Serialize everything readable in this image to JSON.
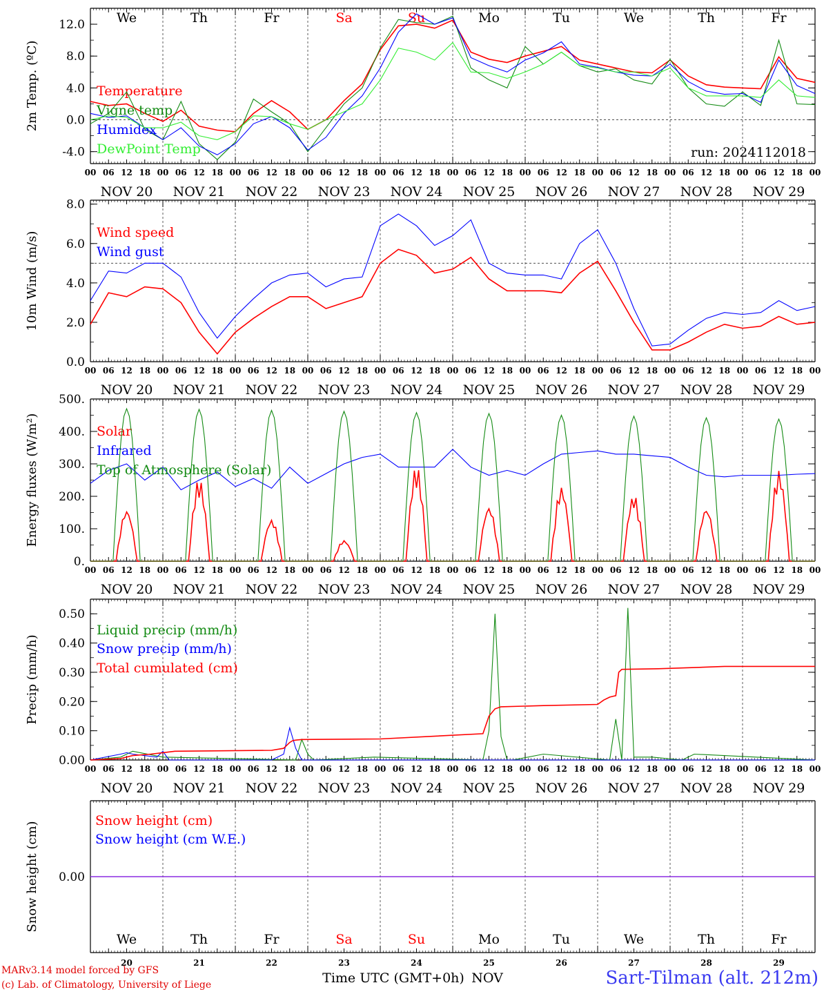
{
  "colors": {
    "red": "#ff0000",
    "darkgreen": "#128a12",
    "blue": "#0000ff",
    "lightgreen": "#33ee33",
    "purple": "#8a2be2",
    "station": "#3a3af0"
  },
  "run_label": "run: 2024112018",
  "days": [
    {
      "abbr": "We",
      "date": "NOV 20",
      "num": "20",
      "weekend": false
    },
    {
      "abbr": "Th",
      "date": "NOV 21",
      "num": "21",
      "weekend": false
    },
    {
      "abbr": "Fr",
      "date": "NOV 22",
      "num": "22",
      "weekend": false
    },
    {
      "abbr": "Sa",
      "date": "NOV 23",
      "num": "23",
      "weekend": true
    },
    {
      "abbr": "Su",
      "date": "NOV 24",
      "num": "24",
      "weekend": true
    },
    {
      "abbr": "Mo",
      "date": "NOV 25",
      "num": "25",
      "weekend": false
    },
    {
      "abbr": "Tu",
      "date": "NOV 26",
      "num": "26",
      "weekend": false
    },
    {
      "abbr": "We",
      "date": "NOV 27",
      "num": "27",
      "weekend": false
    },
    {
      "abbr": "Th",
      "date": "NOV 28",
      "num": "28",
      "weekend": false
    },
    {
      "abbr": "Fr",
      "date": "NOV 29",
      "num": "29",
      "weekend": false
    }
  ],
  "hour_ticks": [
    "00",
    "06",
    "12",
    "18"
  ],
  "hour_end_tick": "00",
  "x_axis_label": "Time UTC (GMT+0h)",
  "x_axis_month": "NOV",
  "footer": {
    "model": "MARv3.14 model forced by GFS",
    "credit": "(c) Lab. of Climatology, University of Liege",
    "station": "Sart-Tilman (alt. 212m)"
  },
  "chart_data": [
    {
      "id": "temp",
      "type": "line",
      "ylabel": "2m Temp. (ºC)",
      "ylim": [
        -5.5,
        14
      ],
      "yticks": [
        "12.0",
        "8.0",
        "4.0",
        "0.0",
        "-4.0"
      ],
      "ytick_values": [
        12,
        8,
        4,
        0,
        -4
      ],
      "x_unit": "hours since NOV 20 00 UTC",
      "ref_line": 0,
      "series": [
        {
          "name": "Temperature",
          "color": "red",
          "x": [
            0,
            6,
            12,
            18,
            24,
            30,
            36,
            42,
            48,
            54,
            60,
            66,
            72,
            78,
            84,
            90,
            96,
            102,
            108,
            114,
            120,
            126,
            132,
            138,
            144,
            150,
            156,
            162,
            168,
            174,
            180,
            186,
            192,
            198,
            204,
            210,
            216,
            222,
            228,
            234,
            240
          ],
          "y": [
            2.3,
            1.8,
            2.0,
            0.8,
            -0.2,
            1.2,
            -0.8,
            -1.3,
            -1.5,
            0.8,
            2.4,
            1.0,
            -1.2,
            0.0,
            2.4,
            4.5,
            8.8,
            11.8,
            12.0,
            11.5,
            12.5,
            8.5,
            7.6,
            7.2,
            8.0,
            8.6,
            9.2,
            7.5,
            7.0,
            6.5,
            6.0,
            5.9,
            7.5,
            5.5,
            4.4,
            4.1,
            4.0,
            3.9,
            7.9,
            5.2,
            4.7
          ]
        },
        {
          "name": "Vigne temp",
          "color": "darkgreen",
          "x": [
            0,
            6,
            12,
            18,
            24,
            30,
            36,
            42,
            48,
            54,
            60,
            66,
            72,
            78,
            84,
            90,
            96,
            102,
            108,
            114,
            120,
            126,
            132,
            138,
            144,
            150,
            156,
            162,
            168,
            174,
            180,
            186,
            192,
            198,
            204,
            210,
            216,
            222,
            228,
            234,
            240
          ],
          "y": [
            -0.5,
            0.8,
            3.5,
            -1.2,
            -2.5,
            2.3,
            -3.0,
            -5.0,
            -2.8,
            2.6,
            1.0,
            -0.5,
            -4.0,
            -1.0,
            2.0,
            4.0,
            9.0,
            12.6,
            12.2,
            12.0,
            13.0,
            6.5,
            5.0,
            4.0,
            9.2,
            7.0,
            8.5,
            6.8,
            6.0,
            6.4,
            5.0,
            4.5,
            7.6,
            4.0,
            2.0,
            1.7,
            3.5,
            1.8,
            10.0,
            2.0,
            1.9
          ]
        },
        {
          "name": "Humidex",
          "color": "blue",
          "x": [
            0,
            6,
            12,
            18,
            24,
            30,
            36,
            42,
            48,
            54,
            60,
            66,
            72,
            78,
            84,
            90,
            96,
            102,
            108,
            114,
            120,
            126,
            132,
            138,
            144,
            150,
            156,
            162,
            168,
            174,
            180,
            186,
            192,
            198,
            204,
            210,
            216,
            222,
            228,
            234,
            240
          ],
          "y": [
            0.8,
            0.3,
            0.5,
            -1.0,
            -2.5,
            -1.0,
            -3.3,
            -4.4,
            -3.0,
            -0.5,
            0.4,
            -1.0,
            -3.8,
            -2.2,
            0.8,
            3.0,
            6.5,
            11.0,
            13.3,
            12.0,
            12.8,
            7.8,
            6.8,
            6.0,
            7.5,
            8.4,
            9.8,
            7.0,
            6.6,
            6.0,
            5.6,
            5.5,
            7.0,
            4.8,
            3.6,
            3.2,
            3.3,
            2.2,
            7.5,
            4.3,
            3.3
          ]
        },
        {
          "name": "DewPoint Temp",
          "color": "lightgreen",
          "x": [
            0,
            6,
            12,
            18,
            24,
            30,
            36,
            42,
            48,
            54,
            60,
            66,
            72,
            78,
            84,
            90,
            96,
            102,
            108,
            114,
            120,
            126,
            132,
            138,
            144,
            150,
            156,
            162,
            168,
            174,
            180,
            186,
            192,
            198,
            204,
            210,
            216,
            222,
            228,
            234,
            240
          ],
          "y": [
            0.0,
            0.5,
            0.3,
            -1.0,
            -1.0,
            -0.3,
            -2.0,
            -2.5,
            -1.5,
            0.5,
            0.4,
            -0.5,
            -1.2,
            0.0,
            1.0,
            2.0,
            5.0,
            9.0,
            8.5,
            7.5,
            9.7,
            6.0,
            5.9,
            5.2,
            6.0,
            7.0,
            8.5,
            6.8,
            6.5,
            6.0,
            6.0,
            5.5,
            6.5,
            4.0,
            3.0,
            3.0,
            3.0,
            2.8,
            5.0,
            3.0,
            2.8
          ]
        }
      ]
    },
    {
      "id": "wind",
      "type": "line",
      "ylabel": "10m Wind (m/s)",
      "ylim": [
        0,
        8.2
      ],
      "yticks": [
        "8.0",
        "6.0",
        "4.0",
        "2.0",
        "0.0"
      ],
      "ytick_values": [
        8,
        6,
        4,
        2,
        0
      ],
      "x_unit": "hours since NOV 20 00 UTC",
      "ref_line": 5,
      "series": [
        {
          "name": "Wind speed",
          "color": "red",
          "x": [
            0,
            6,
            12,
            18,
            24,
            30,
            36,
            42,
            48,
            54,
            60,
            66,
            72,
            78,
            84,
            90,
            96,
            102,
            108,
            114,
            120,
            126,
            132,
            138,
            144,
            150,
            156,
            162,
            168,
            174,
            180,
            186,
            192,
            198,
            204,
            210,
            216,
            222,
            228,
            234,
            240
          ],
          "y": [
            1.9,
            3.5,
            3.3,
            3.8,
            3.7,
            3.0,
            1.5,
            0.4,
            1.5,
            2.2,
            2.8,
            3.3,
            3.3,
            2.7,
            3.0,
            3.3,
            5.0,
            5.7,
            5.4,
            4.5,
            4.7,
            5.3,
            4.2,
            3.6,
            3.6,
            3.6,
            3.5,
            4.5,
            5.1,
            3.6,
            2.0,
            0.6,
            0.6,
            1.0,
            1.5,
            1.9,
            1.7,
            1.8,
            2.3,
            1.9,
            2.0
          ]
        },
        {
          "name": "Wind gust",
          "color": "blue",
          "x": [
            0,
            6,
            12,
            18,
            24,
            30,
            36,
            42,
            48,
            54,
            60,
            66,
            72,
            78,
            84,
            90,
            96,
            102,
            108,
            114,
            120,
            126,
            132,
            138,
            144,
            150,
            156,
            162,
            168,
            174,
            180,
            186,
            192,
            198,
            204,
            210,
            216,
            222,
            228,
            234,
            240
          ],
          "y": [
            3.1,
            4.6,
            4.5,
            5.0,
            5.0,
            4.3,
            2.5,
            1.2,
            2.3,
            3.2,
            4.0,
            4.4,
            4.5,
            3.8,
            4.2,
            4.3,
            6.9,
            7.5,
            6.9,
            5.9,
            6.4,
            7.2,
            5.0,
            4.5,
            4.4,
            4.4,
            4.2,
            6.0,
            6.7,
            5.0,
            2.7,
            0.8,
            0.9,
            1.6,
            2.2,
            2.5,
            2.4,
            2.5,
            3.1,
            2.6,
            2.8
          ]
        }
      ]
    },
    {
      "id": "energy",
      "type": "line",
      "ylabel": "Energy fluxes (W/m²)",
      "ylim": [
        0,
        500
      ],
      "yticks": [
        "500.",
        "400.",
        "300.",
        "200.",
        "100.",
        "0."
      ],
      "ytick_values": [
        500,
        400,
        300,
        200,
        100,
        0
      ],
      "x_unit": "hours since NOV 20 00 UTC",
      "series": [
        {
          "name": "Solar",
          "color": "red",
          "daily_peaks": [
            160,
            255,
            130,
            65,
            295,
            170,
            230,
            205,
            165,
            280
          ]
        },
        {
          "name": "Infrared",
          "color": "blue",
          "x": [
            0,
            6,
            12,
            18,
            24,
            30,
            36,
            42,
            48,
            54,
            60,
            66,
            72,
            78,
            84,
            90,
            96,
            102,
            108,
            114,
            120,
            126,
            132,
            138,
            144,
            150,
            156,
            162,
            168,
            174,
            180,
            186,
            192,
            198,
            204,
            210,
            216,
            222,
            228,
            234,
            240
          ],
          "y": [
            240,
            280,
            300,
            250,
            290,
            220,
            250,
            275,
            230,
            255,
            225,
            290,
            240,
            270,
            300,
            320,
            330,
            290,
            290,
            290,
            345,
            290,
            265,
            280,
            265,
            300,
            330,
            335,
            340,
            330,
            330,
            325,
            320,
            290,
            265,
            260,
            265,
            265,
            265,
            268,
            270
          ]
        },
        {
          "name": "Top of Atmosphere (Solar)",
          "color": "darkgreen",
          "daily_peaks": [
            470,
            468,
            465,
            462,
            458,
            455,
            450,
            447,
            442,
            438
          ]
        }
      ]
    },
    {
      "id": "precip",
      "type": "line",
      "ylabel": "Precip (mm/h)",
      "ylim": [
        0,
        0.55
      ],
      "yticks": [
        "0.50",
        "0.40",
        "0.30",
        "0.20",
        "0.10",
        "0.00"
      ],
      "ytick_values": [
        0.5,
        0.4,
        0.3,
        0.2,
        0.1,
        0
      ],
      "x_unit": "hours since NOV 20 00 UTC",
      "series": [
        {
          "name": "Liquid precip (mm/h)",
          "color": "darkgreen",
          "x": [
            0,
            10,
            14,
            24,
            68,
            70,
            72,
            74,
            94,
            130,
            132,
            134,
            136,
            138,
            140,
            150,
            172,
            174,
            176,
            178,
            180,
            186,
            196,
            200,
            240
          ],
          "y": [
            0,
            0.01,
            0.03,
            0.01,
            0,
            0.07,
            0.02,
            0,
            0.01,
            0,
            0.1,
            0.5,
            0.08,
            0,
            0,
            0.02,
            0,
            0.14,
            0,
            0.52,
            0.01,
            0.01,
            0,
            0.02,
            0
          ]
        },
        {
          "name": "Snow precip (mm/h)",
          "color": "blue",
          "x": [
            0,
            10,
            12,
            14,
            22,
            24,
            26,
            60,
            64,
            66,
            68,
            70,
            240
          ],
          "y": [
            0,
            0.02,
            0.025,
            0.02,
            0.01,
            0.03,
            0,
            0,
            0.02,
            0.11,
            0.04,
            0,
            0
          ]
        },
        {
          "name": "Total cumulated (cm)",
          "color": "red",
          "x": [
            0,
            10,
            14,
            20,
            24,
            28,
            60,
            64,
            66,
            67,
            68,
            70,
            96,
            130,
            132,
            134,
            136,
            150,
            168,
            170,
            172,
            174,
            175,
            176,
            188,
            200,
            210,
            240
          ],
          "y": [
            0,
            0.005,
            0.015,
            0.02,
            0.025,
            0.03,
            0.033,
            0.04,
            0.06,
            0.066,
            0.068,
            0.07,
            0.072,
            0.09,
            0.15,
            0.175,
            0.182,
            0.186,
            0.19,
            0.205,
            0.215,
            0.22,
            0.3,
            0.31,
            0.312,
            0.316,
            0.32,
            0.32
          ]
        }
      ]
    },
    {
      "id": "snow",
      "type": "line",
      "ylabel": "Snow height (cm)",
      "ylim": [
        -0.01,
        0.01
      ],
      "yticks": [
        "0.00"
      ],
      "ytick_values": [
        0
      ],
      "x_unit": "hours since NOV 20 00 UTC",
      "series": [
        {
          "name": "Snow height (cm)",
          "color": "red",
          "x": [
            0,
            240
          ],
          "y": [
            0,
            0
          ]
        },
        {
          "name": "Snow height (cm W.E.)",
          "color": "blue",
          "x": [
            0,
            240
          ],
          "y": [
            0,
            0
          ]
        }
      ]
    }
  ]
}
